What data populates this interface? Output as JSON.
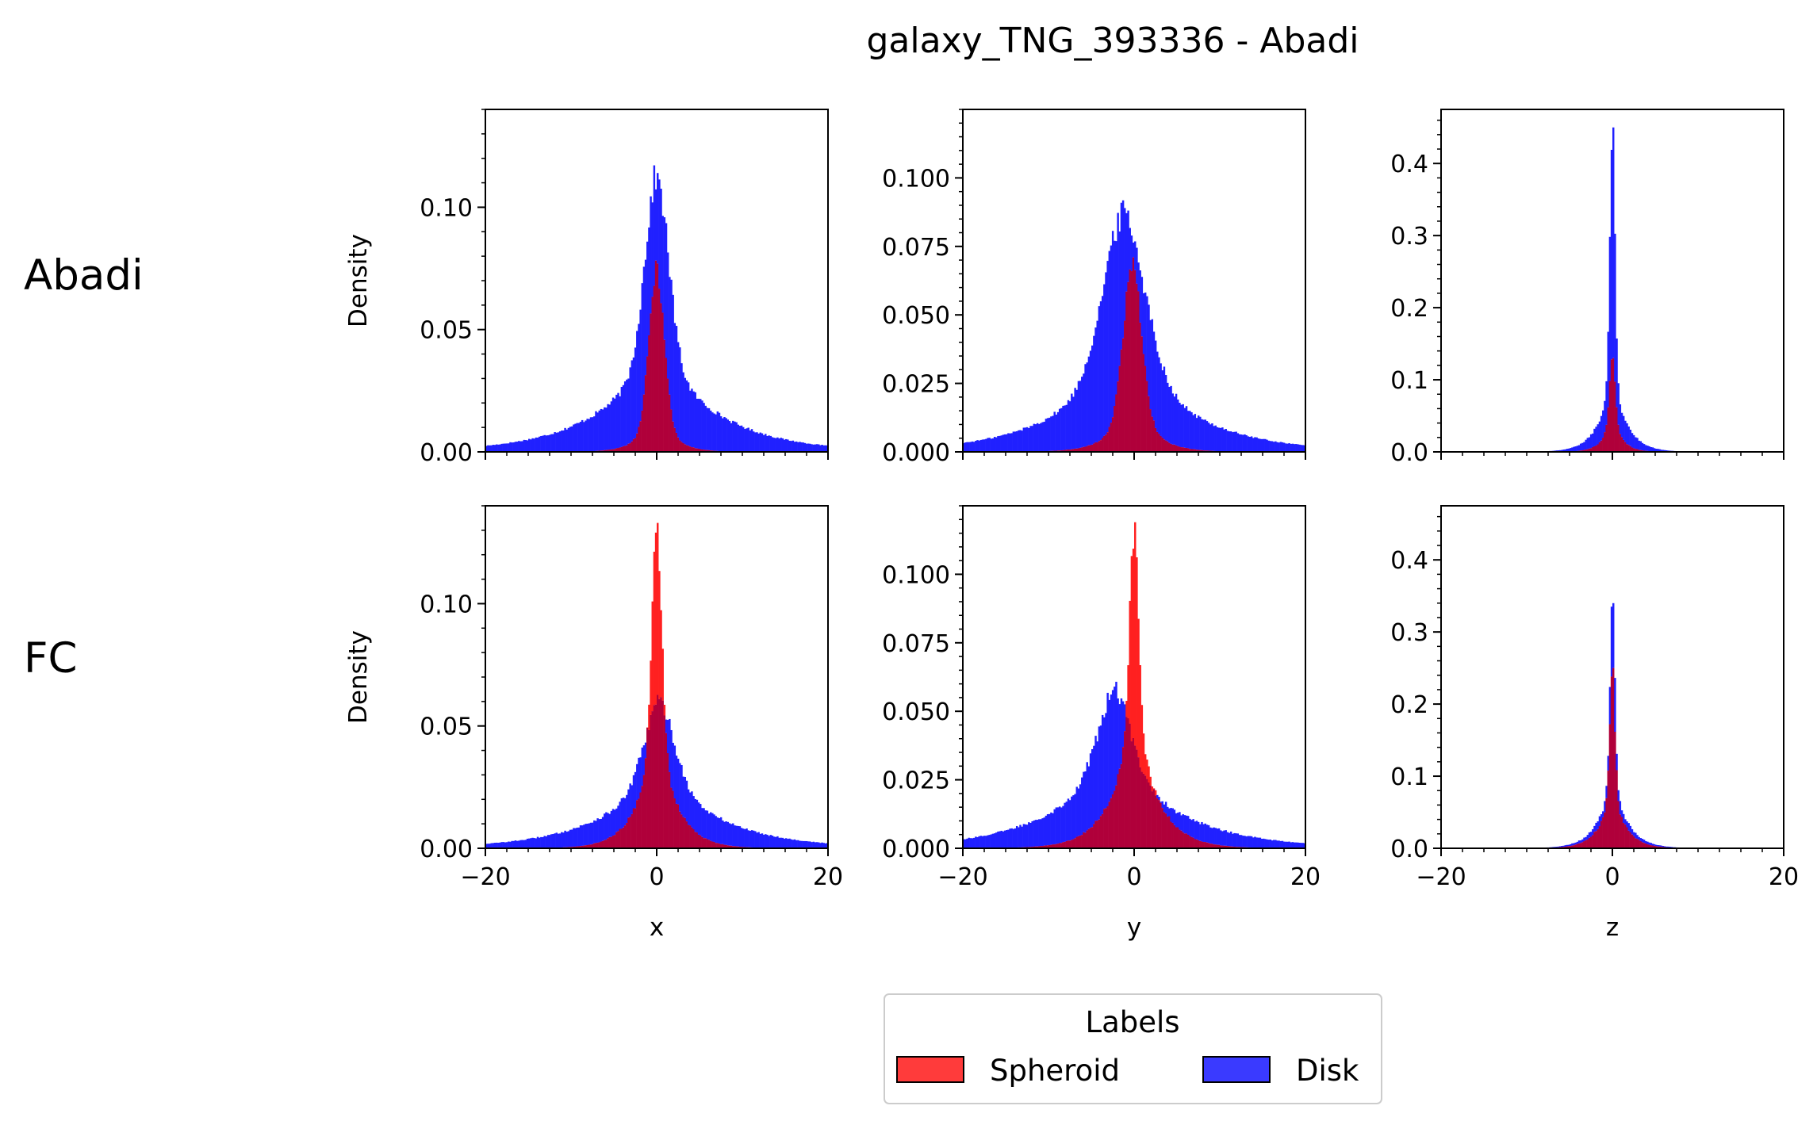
{
  "figure": {
    "title": "galaxy_TNG_393336 - Abadi",
    "row_labels": [
      "Abadi",
      "FC"
    ]
  },
  "legend": {
    "title": "Labels",
    "entries": [
      {
        "name": "Spheroid",
        "color": "#ff3b3b"
      },
      {
        "name": "Disk",
        "color": "#3a3aff"
      }
    ]
  },
  "colors": {
    "spheroid": "#ff2020",
    "disk": "#2020ff",
    "overlap": "#b0003a"
  },
  "chart_data": [
    {
      "type": "bar",
      "row": "Abadi",
      "xlabel": "",
      "ylabel": "Density",
      "xlim": [
        -20,
        20
      ],
      "ylim": [
        0,
        0.14
      ],
      "yticks": [
        0.0,
        0.05,
        0.1
      ],
      "ytick_labels": [
        "0.00",
        "0.05",
        "0.10"
      ],
      "xticks": [
        -20,
        0,
        20
      ],
      "xtick_labels": [
        "",
        "",
        ""
      ],
      "series": [
        {
          "name": "Disk",
          "shape": "peaked",
          "peak": 0.114,
          "center": 0,
          "core_width": 1.4,
          "tail_width": 7.0,
          "core_fraction": 0.62,
          "asymmetry": 0.0,
          "edge_value": 0.003
        },
        {
          "name": "Spheroid",
          "shape": "peaked",
          "peak": 0.077,
          "center": 0,
          "core_width": 0.9,
          "tail_width": 1.8,
          "core_fraction": 0.75,
          "asymmetry": 0.0,
          "edge_value": 0.0
        }
      ]
    },
    {
      "type": "bar",
      "row": "Abadi",
      "xlabel": "",
      "ylabel": "",
      "xlim": [
        -20,
        20
      ],
      "ylim": [
        0,
        0.125
      ],
      "yticks": [
        0.0,
        0.025,
        0.05,
        0.075,
        0.1
      ],
      "ytick_labels": [
        "0.000",
        "0.025",
        "0.050",
        "0.075",
        "0.100"
      ],
      "xticks": [
        -20,
        0,
        20
      ],
      "xtick_labels": [
        "",
        "",
        ""
      ],
      "series": [
        {
          "name": "Disk",
          "shape": "peaked",
          "peak": 0.089,
          "center": -1.2,
          "core_width": 2.5,
          "tail_width": 7.5,
          "core_fraction": 0.55,
          "asymmetry": 0.0,
          "edge_value": 0.002
        },
        {
          "name": "Spheroid",
          "shape": "peaked",
          "peak": 0.071,
          "center": -0.2,
          "core_width": 1.1,
          "tail_width": 2.3,
          "core_fraction": 0.7,
          "asymmetry": 0.0,
          "edge_value": 0.0
        }
      ]
    },
    {
      "type": "bar",
      "row": "Abadi",
      "xlabel": "",
      "ylabel": "",
      "xlim": [
        -20,
        20
      ],
      "ylim": [
        0,
        0.475
      ],
      "yticks": [
        0.0,
        0.1,
        0.2,
        0.3,
        0.4
      ],
      "ytick_labels": [
        "0.0",
        "0.1",
        "0.2",
        "0.3",
        "0.4"
      ],
      "xticks": [
        -20,
        0,
        20
      ],
      "xtick_labels": [
        "",
        "",
        ""
      ],
      "series": [
        {
          "name": "Disk",
          "shape": "peaked",
          "peak": 0.45,
          "center": 0,
          "core_width": 0.3,
          "tail_width": 1.6,
          "core_fraction": 0.75,
          "asymmetry": 0.0,
          "edge_value": 0.0
        },
        {
          "name": "Spheroid",
          "shape": "peaked",
          "peak": 0.13,
          "center": 0,
          "core_width": 0.35,
          "tail_width": 1.1,
          "core_fraction": 0.6,
          "asymmetry": 0.0,
          "edge_value": 0.0
        }
      ]
    },
    {
      "type": "bar",
      "row": "FC",
      "xlabel": "x",
      "ylabel": "Density",
      "xlim": [
        -20,
        20
      ],
      "ylim": [
        0,
        0.14
      ],
      "yticks": [
        0.0,
        0.05,
        0.1
      ],
      "ytick_labels": [
        "0.00",
        "0.05",
        "0.10"
      ],
      "xticks": [
        -20,
        0,
        20
      ],
      "xtick_labels": [
        "−20",
        "0",
        "20"
      ],
      "series": [
        {
          "name": "Disk",
          "shape": "peaked",
          "peak": 0.061,
          "center": 0.3,
          "core_width": 1.8,
          "tail_width": 7.0,
          "core_fraction": 0.45,
          "asymmetry": 0.0,
          "edge_value": 0.003
        },
        {
          "name": "Spheroid",
          "shape": "peaked",
          "peak": 0.133,
          "center": 0,
          "core_width": 0.6,
          "tail_width": 2.2,
          "core_fraction": 0.6,
          "asymmetry": 0.0,
          "edge_value": 0.0
        }
      ]
    },
    {
      "type": "bar",
      "row": "FC",
      "xlabel": "y",
      "ylabel": "",
      "xlim": [
        -20,
        20
      ],
      "ylim": [
        0,
        0.125
      ],
      "yticks": [
        0.0,
        0.025,
        0.05,
        0.075,
        0.1
      ],
      "ytick_labels": [
        "0.000",
        "0.025",
        "0.050",
        "0.075",
        "0.100"
      ],
      "xticks": [
        -20,
        0,
        20
      ],
      "xtick_labels": [
        "−20",
        "0",
        "20"
      ],
      "series": [
        {
          "name": "Disk",
          "shape": "peaked",
          "peak": 0.059,
          "center": -2.3,
          "core_width": 2.0,
          "tail_width": 7.5,
          "core_fraction": 0.4,
          "asymmetry": 0.0,
          "edge_value": 0.002
        },
        {
          "name": "Spheroid",
          "shape": "peaked",
          "peak": 0.119,
          "center": 0,
          "core_width": 0.55,
          "tail_width": 2.6,
          "core_fraction": 0.55,
          "asymmetry": 0.0,
          "edge_value": 0.0
        }
      ]
    },
    {
      "type": "bar",
      "row": "FC",
      "xlabel": "z",
      "ylabel": "",
      "xlim": [
        -20,
        20
      ],
      "ylim": [
        0,
        0.475
      ],
      "yticks": [
        0.0,
        0.1,
        0.2,
        0.3,
        0.4
      ],
      "ytick_labels": [
        "0.0",
        "0.1",
        "0.2",
        "0.3",
        "0.4"
      ],
      "xticks": [
        -20,
        0,
        20
      ],
      "xtick_labels": [
        "−20",
        "0",
        "20"
      ],
      "series": [
        {
          "name": "Disk",
          "shape": "peaked",
          "peak": 0.34,
          "center": 0,
          "core_width": 0.3,
          "tail_width": 1.7,
          "core_fraction": 0.7,
          "asymmetry": 0.0,
          "edge_value": 0.0
        },
        {
          "name": "Spheroid",
          "shape": "peaked",
          "peak": 0.25,
          "center": 0,
          "core_width": 0.3,
          "tail_width": 1.5,
          "core_fraction": 0.65,
          "asymmetry": 0.0,
          "edge_value": 0.0
        }
      ]
    }
  ]
}
